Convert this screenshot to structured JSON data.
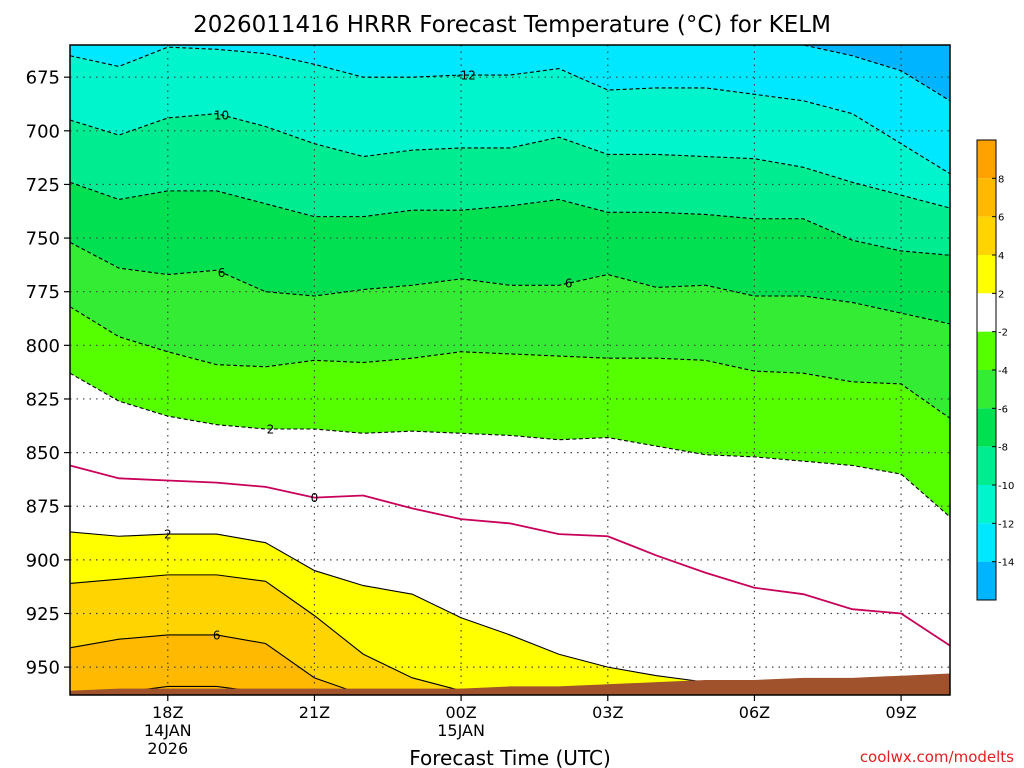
{
  "chart_data": {
    "type": "contour",
    "title": "2026011416 HRRR Forecast Temperature (°C) for KELM",
    "xlabel": "Forecast Time (UTC)",
    "ylabel": "",
    "x_hours": [
      0,
      1,
      2,
      3,
      4,
      5,
      6,
      7,
      8,
      9,
      10,
      11,
      12,
      13,
      14,
      15,
      16,
      17,
      18
    ],
    "xlim": [
      0,
      18
    ],
    "ylim": [
      963,
      660
    ],
    "ygrid_levels": [
      675,
      700,
      725,
      750,
      775,
      800,
      825,
      850,
      875,
      900,
      925,
      950
    ],
    "ytick_labels": [
      "675",
      "700",
      "725",
      "750",
      "775",
      "800",
      "825",
      "850",
      "875",
      "900",
      "925",
      "950"
    ],
    "xticks": [
      {
        "hour": 2,
        "lines": [
          "18Z",
          "14JAN",
          "2026"
        ]
      },
      {
        "hour": 5,
        "lines": [
          "21Z"
        ]
      },
      {
        "hour": 8,
        "lines": [
          "00Z",
          "15JAN"
        ]
      },
      {
        "hour": 11,
        "lines": [
          "03Z"
        ]
      },
      {
        "hour": 14,
        "lines": [
          "06Z"
        ]
      },
      {
        "hour": 17,
        "lines": [
          "09Z"
        ]
      }
    ],
    "colorbar": {
      "labels": [
        "8",
        "6",
        "4",
        "2",
        "-2",
        "-4",
        "-6",
        "-8",
        "-10",
        "-12",
        "-14"
      ],
      "colors": [
        "#ffa200",
        "#ffb900",
        "#ffd400",
        "#ffff00",
        "#ffffff",
        "#55ff00",
        "#33ec33",
        "#00e050",
        "#00ec90",
        "#00f5cc",
        "#00e8ff",
        "#00b4ff"
      ]
    },
    "fill_colors": {
      "t_lt_-14": "#00b4ff",
      "t_-14_-12": "#00e8ff",
      "t_-12_-10": "#00f5cc",
      "t_-10_-8": "#00ec90",
      "t_-8_-6": "#00e050",
      "t_-6_-4": "#33ec33",
      "t_-4_-2": "#55ff00",
      "t_-2_2": "#ffffff",
      "t_2_4": "#ffff00",
      "t_4_6": "#ffd400",
      "t_6_8": "#ffb900",
      "ground": "#a0522d"
    },
    "contours": [
      {
        "temp": -14,
        "style": "dashed",
        "pressure": [
          660,
          660,
          660,
          660,
          660,
          660,
          660,
          660,
          660,
          660,
          660,
          660,
          660,
          660,
          660,
          660,
          665,
          672,
          686
        ]
      },
      {
        "temp": -12,
        "style": "dashed",
        "label": "-12",
        "label_hour": 8.1,
        "pressure": [
          665,
          670,
          661,
          662,
          664,
          669,
          675,
          675,
          674,
          674,
          671,
          681,
          680,
          680,
          683,
          686,
          692,
          706,
          720
        ]
      },
      {
        "temp": -10,
        "style": "dashed",
        "label": "10",
        "label_hour": 3.1,
        "pressure": [
          695,
          702,
          694,
          692,
          698,
          706,
          712,
          709,
          708,
          708,
          703,
          711,
          711,
          712,
          713,
          717,
          724,
          730,
          736
        ]
      },
      {
        "temp": -8,
        "style": "dashed",
        "pressure": [
          724,
          732,
          728,
          728,
          734,
          740,
          740,
          737,
          737,
          735,
          732,
          738,
          738,
          739,
          741,
          741,
          751,
          756,
          758
        ]
      },
      {
        "temp": -6,
        "style": "dashed",
        "label": "6",
        "label_hour": 3.1,
        "label2": "6",
        "label2_hour": 10.2,
        "pressure": [
          752,
          764,
          767,
          765,
          775,
          777,
          774,
          772,
          769,
          772,
          772,
          767,
          773,
          772,
          777,
          777,
          780,
          785,
          790
        ]
      },
      {
        "temp": -4,
        "style": "dashed",
        "pressure": [
          782,
          796,
          803,
          809,
          810,
          807,
          808,
          806,
          803,
          804,
          805,
          806,
          806,
          807,
          812,
          813,
          817,
          818,
          834
        ]
      },
      {
        "temp": -2,
        "style": "dashed",
        "label": "2",
        "label_hour": 4.1,
        "pressure": [
          813,
          826,
          833,
          837,
          839,
          839,
          841,
          840,
          841,
          842,
          844,
          843,
          847,
          851,
          852,
          854,
          856,
          860,
          880
        ]
      },
      {
        "temp": 0,
        "style": "solid",
        "color": "#c8005a",
        "label": "0",
        "label_hour": 5.0,
        "pressure": [
          856,
          862,
          863,
          864,
          866,
          871,
          870,
          876,
          881,
          883,
          888,
          889,
          898,
          906,
          913,
          916,
          923,
          925,
          940
        ]
      },
      {
        "temp": 2,
        "style": "solid",
        "label": "2",
        "label_hour": 2.0,
        "pressure": [
          887,
          889,
          888,
          888,
          892,
          905,
          912,
          916,
          927,
          935,
          944,
          950,
          954,
          957,
          963,
          963,
          963,
          963,
          963
        ]
      },
      {
        "temp": 4,
        "style": "solid",
        "pressure": [
          911,
          909,
          907,
          907,
          910,
          926,
          944,
          955,
          961,
          963,
          963,
          963,
          963,
          963,
          963,
          963,
          963,
          963,
          963
        ]
      },
      {
        "temp": 6,
        "style": "solid",
        "label": "6",
        "label_hour": 3.0,
        "pressure": [
          941,
          937,
          935,
          935,
          939,
          955,
          963,
          963,
          963,
          963,
          963,
          963,
          963,
          963,
          963,
          963,
          963,
          963,
          963
        ]
      },
      {
        "temp": 8,
        "style": "solid",
        "pressure": [
          963,
          962,
          959,
          959,
          962,
          963,
          963,
          963,
          963,
          963,
          963,
          963,
          963,
          963,
          963,
          963,
          963,
          963,
          963
        ]
      }
    ],
    "surface_pressure": [
      961,
      960,
      960,
      960,
      960,
      960,
      960,
      960,
      960,
      959,
      959,
      958,
      957,
      956,
      956,
      955,
      955,
      954,
      953
    ]
  },
  "credit": "coolwx.com/modelts"
}
